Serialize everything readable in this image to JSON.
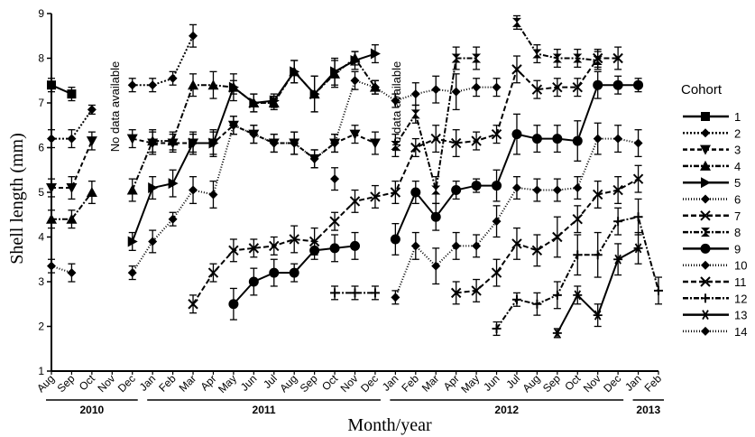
{
  "chart_data": {
    "type": "line",
    "ylabel": "Shell length (mm)",
    "xlabel": "Month/year",
    "ylim": [
      1,
      9
    ],
    "y_ticks": [
      1,
      2,
      3,
      4,
      5,
      6,
      7,
      8,
      9
    ],
    "months": [
      "Aug",
      "Sep",
      "Oct",
      "Nov",
      "Dec",
      "Jan",
      "Feb",
      "Mar",
      "Apr",
      "May",
      "Jun",
      "Jul",
      "Aug",
      "Sep",
      "Oct",
      "Nov",
      "Dec",
      "Jan",
      "Feb",
      "Mar",
      "Apr",
      "May",
      "Jun",
      "Jul",
      "Aug",
      "Sep",
      "Oct",
      "Nov",
      "Dec",
      "Jan",
      "Feb"
    ],
    "years": [
      {
        "label": "2010",
        "start": 0,
        "end": 4
      },
      {
        "label": "2011",
        "start": 5,
        "end": 16
      },
      {
        "label": "2012",
        "start": 17,
        "end": 28
      },
      {
        "label": "2013",
        "start": 29,
        "end": 30
      }
    ],
    "annotations": [
      "No data available",
      "No data available"
    ],
    "legend_title": "Cohort",
    "series": [
      {
        "name": "1",
        "marker": "square",
        "dash": "",
        "points": [
          [
            0,
            7.4,
            0.15
          ],
          [
            1,
            7.2,
            0.15
          ]
        ]
      },
      {
        "name": "2",
        "marker": "diamond",
        "dash": "2,2",
        "points": [
          [
            0,
            6.2,
            0.2
          ],
          [
            1,
            6.2,
            0.2
          ],
          [
            2,
            6.85,
            0.1
          ],
          [
            4,
            7.4,
            0.15
          ],
          [
            5,
            7.4,
            0.15
          ],
          [
            6,
            7.55,
            0.15
          ],
          [
            7,
            8.5,
            0.25
          ]
        ]
      },
      {
        "name": "3",
        "marker": "triangle-down",
        "dash": "5,3",
        "points": [
          [
            0,
            5.1,
            0.2
          ],
          [
            1,
            5.1,
            0.25
          ],
          [
            2,
            6.15,
            0.2
          ],
          [
            4,
            6.2,
            0.2
          ],
          [
            5,
            6.1,
            0.25
          ],
          [
            6,
            6.1,
            0.2
          ],
          [
            7,
            6.1,
            0.2
          ],
          [
            8,
            6.1,
            0.25
          ],
          [
            9,
            6.5,
            0.2
          ],
          [
            10,
            6.3,
            0.2
          ],
          [
            11,
            6.1,
            0.2
          ],
          [
            12,
            6.1,
            0.25
          ],
          [
            13,
            5.75,
            0.2
          ],
          [
            14,
            6.1,
            0.2
          ],
          [
            15,
            6.3,
            0.2
          ],
          [
            16,
            6.1,
            0.25
          ]
        ]
      },
      {
        "name": "4",
        "marker": "triangle-up",
        "dash": "6,2,2,2",
        "points": [
          [
            0,
            4.4,
            0.2
          ],
          [
            1,
            4.4,
            0.2
          ],
          [
            2,
            5.0,
            0.25
          ],
          [
            4,
            5.05,
            0.25
          ],
          [
            5,
            6.15,
            0.25
          ],
          [
            6,
            6.15,
            0.2
          ],
          [
            7,
            7.4,
            0.25
          ],
          [
            8,
            7.4,
            0.3
          ],
          [
            9,
            7.35,
            0.3
          ],
          [
            10,
            7.0,
            0.2
          ],
          [
            11,
            7.0,
            0.15
          ],
          [
            12,
            7.7,
            0.25
          ],
          [
            13,
            7.2,
            0.4
          ],
          [
            14,
            7.65,
            0.3
          ],
          [
            15,
            8.0,
            0.15
          ],
          [
            16,
            7.35,
            0.15
          ]
        ]
      },
      {
        "name": "5",
        "marker": "triangle-right",
        "dash": "",
        "points": [
          [
            4,
            3.9,
            0.2
          ],
          [
            5,
            5.1,
            0.25
          ],
          [
            6,
            5.2,
            0.3
          ],
          [
            7,
            6.1,
            0.25
          ],
          [
            8,
            6.1,
            0.3
          ],
          [
            9,
            7.35,
            0.15
          ],
          [
            10,
            7.0,
            0.2
          ],
          [
            11,
            7.05,
            0.15
          ],
          [
            12,
            7.7,
            0.25
          ],
          [
            13,
            7.2,
            0.4
          ],
          [
            14,
            7.7,
            0.3
          ],
          [
            15,
            7.95,
            0.2
          ],
          [
            16,
            8.1,
            0.2
          ]
        ]
      },
      {
        "name": "6",
        "marker": "diamond",
        "dash": "1,2",
        "points": [
          [
            0,
            3.35,
            0.15
          ],
          [
            1,
            3.2,
            0.2
          ],
          [
            4,
            3.2,
            0.15
          ],
          [
            5,
            3.9,
            0.25
          ],
          [
            6,
            4.4,
            0.15
          ],
          [
            7,
            5.05,
            0.3
          ],
          [
            8,
            4.95,
            0.3
          ],
          [
            9,
            6.5,
            0.2
          ],
          [
            10,
            6.3,
            0.2
          ],
          [
            11,
            6.1,
            0.2
          ],
          [
            12,
            6.1,
            0.25
          ],
          [
            13,
            5.75,
            0.2
          ],
          [
            14,
            6.1,
            0.2
          ],
          [
            15,
            7.5,
            0.2
          ],
          [
            16,
            7.35,
            0.15
          ],
          [
            17,
            7.05,
            0.15
          ],
          [
            18,
            7.2,
            0.25
          ],
          [
            19,
            7.3,
            0.3
          ],
          [
            20,
            7.25,
            0.4
          ],
          [
            21,
            7.35,
            0.2
          ],
          [
            22,
            7.35,
            0.2
          ]
        ]
      },
      {
        "name": "7",
        "marker": "cross",
        "dash": "6,3",
        "points": [
          [
            7,
            2.5,
            0.2
          ],
          [
            8,
            3.2,
            0.2
          ],
          [
            9,
            3.7,
            0.25
          ],
          [
            10,
            3.75,
            0.2
          ],
          [
            11,
            3.8,
            0.2
          ],
          [
            12,
            3.95,
            0.3
          ],
          [
            13,
            3.9,
            0.3
          ],
          [
            14,
            4.35,
            0.2
          ],
          [
            15,
            4.8,
            0.25
          ],
          [
            16,
            4.9,
            0.25
          ],
          [
            17,
            5.0,
            0.25
          ],
          [
            18,
            6.0,
            0.2
          ],
          [
            19,
            6.2,
            0.3
          ],
          [
            20,
            6.1,
            0.3
          ],
          [
            21,
            6.15,
            0.2
          ],
          [
            22,
            6.3,
            0.2
          ],
          [
            23,
            7.75,
            0.3
          ],
          [
            24,
            7.3,
            0.2
          ],
          [
            25,
            7.35,
            0.2
          ],
          [
            26,
            7.35,
            0.2
          ],
          [
            27,
            8.0,
            0.2
          ],
          [
            28,
            8.0,
            0.25
          ]
        ]
      },
      {
        "name": "8",
        "marker": "bowtie",
        "dash": "6,2,2,2",
        "points": [
          [
            17,
            6.05,
            0.25
          ],
          [
            18,
            6.75,
            0.2
          ],
          [
            19,
            5.05,
            0.3
          ],
          [
            20,
            8.0,
            0.25
          ],
          [
            21,
            8.0,
            0.25
          ],
          [
            23,
            8.8,
            0.15
          ],
          [
            24,
            8.1,
            0.2
          ],
          [
            25,
            8.0,
            0.2
          ],
          [
            26,
            8.0,
            0.2
          ],
          [
            27,
            7.95,
            0.2
          ]
        ]
      },
      {
        "name": "9",
        "marker": "circle",
        "dash": "",
        "points": [
          [
            9,
            2.5,
            0.35
          ],
          [
            10,
            3.0,
            0.3
          ],
          [
            11,
            3.2,
            0.3
          ],
          [
            12,
            3.2,
            0.2
          ],
          [
            13,
            3.7,
            0.2
          ],
          [
            14,
            3.75,
            0.3
          ],
          [
            15,
            3.8,
            0.3
          ],
          [
            17,
            3.95,
            0.35
          ],
          [
            18,
            5.0,
            0.25
          ],
          [
            19,
            4.45,
            0.3
          ],
          [
            20,
            5.05,
            0.2
          ],
          [
            21,
            5.15,
            0.15
          ],
          [
            22,
            5.15,
            0.35
          ],
          [
            23,
            6.3,
            0.45
          ],
          [
            24,
            6.2,
            0.3
          ],
          [
            25,
            6.2,
            0.3
          ],
          [
            26,
            6.15,
            0.45
          ],
          [
            27,
            7.4,
            0.3
          ],
          [
            28,
            7.4,
            0.2
          ],
          [
            29,
            7.4,
            0.15
          ]
        ]
      },
      {
        "name": "10",
        "marker": "diamond",
        "dash": "1,2",
        "points": [
          [
            14,
            5.3,
            0.25
          ],
          [
            17,
            2.65,
            0.15
          ],
          [
            18,
            3.8,
            0.3
          ],
          [
            19,
            3.35,
            0.4
          ],
          [
            20,
            3.8,
            0.3
          ],
          [
            21,
            3.8,
            0.25
          ],
          [
            22,
            4.35,
            0.35
          ],
          [
            23,
            5.1,
            0.25
          ],
          [
            24,
            5.05,
            0.25
          ],
          [
            25,
            5.05,
            0.25
          ],
          [
            26,
            5.1,
            0.25
          ],
          [
            27,
            6.2,
            0.35
          ],
          [
            28,
            6.2,
            0.3
          ],
          [
            29,
            6.1,
            0.3
          ]
        ]
      },
      {
        "name": "11",
        "marker": "x",
        "dash": "6,3",
        "points": [
          [
            20,
            2.75,
            0.25
          ],
          [
            21,
            2.8,
            0.25
          ],
          [
            22,
            3.2,
            0.3
          ],
          [
            23,
            3.85,
            0.35
          ],
          [
            24,
            3.7,
            0.35
          ],
          [
            25,
            4.0,
            0.45
          ],
          [
            26,
            4.4,
            0.3
          ],
          [
            27,
            4.95,
            0.3
          ],
          [
            28,
            5.05,
            0.3
          ],
          [
            29,
            5.3,
            0.3
          ]
        ]
      },
      {
        "name": "12",
        "marker": "plus",
        "dash": "6,2,2,2",
        "points": [
          [
            14,
            2.75,
            0.15
          ],
          [
            15,
            2.75,
            0.15
          ],
          [
            16,
            2.75,
            0.15
          ],
          [
            22,
            1.95,
            0.15
          ],
          [
            23,
            2.6,
            0.15
          ],
          [
            24,
            2.5,
            0.25
          ],
          [
            25,
            2.7,
            0.3
          ],
          [
            26,
            3.6,
            0.45
          ],
          [
            27,
            3.6,
            0.5
          ],
          [
            28,
            4.35,
            0.3
          ],
          [
            29,
            4.45,
            0.4
          ],
          [
            30,
            2.8,
            0.3
          ]
        ]
      },
      {
        "name": "13",
        "marker": "asterisk",
        "dash": "",
        "points": [
          [
            25,
            1.85,
            0.1
          ],
          [
            26,
            2.7,
            0.2
          ],
          [
            27,
            2.25,
            0.25
          ],
          [
            28,
            3.5,
            0.35
          ],
          [
            29,
            3.75,
            0.35
          ]
        ]
      },
      {
        "name": "14",
        "marker": "diamond",
        "dash": "1,2",
        "points": []
      }
    ]
  }
}
